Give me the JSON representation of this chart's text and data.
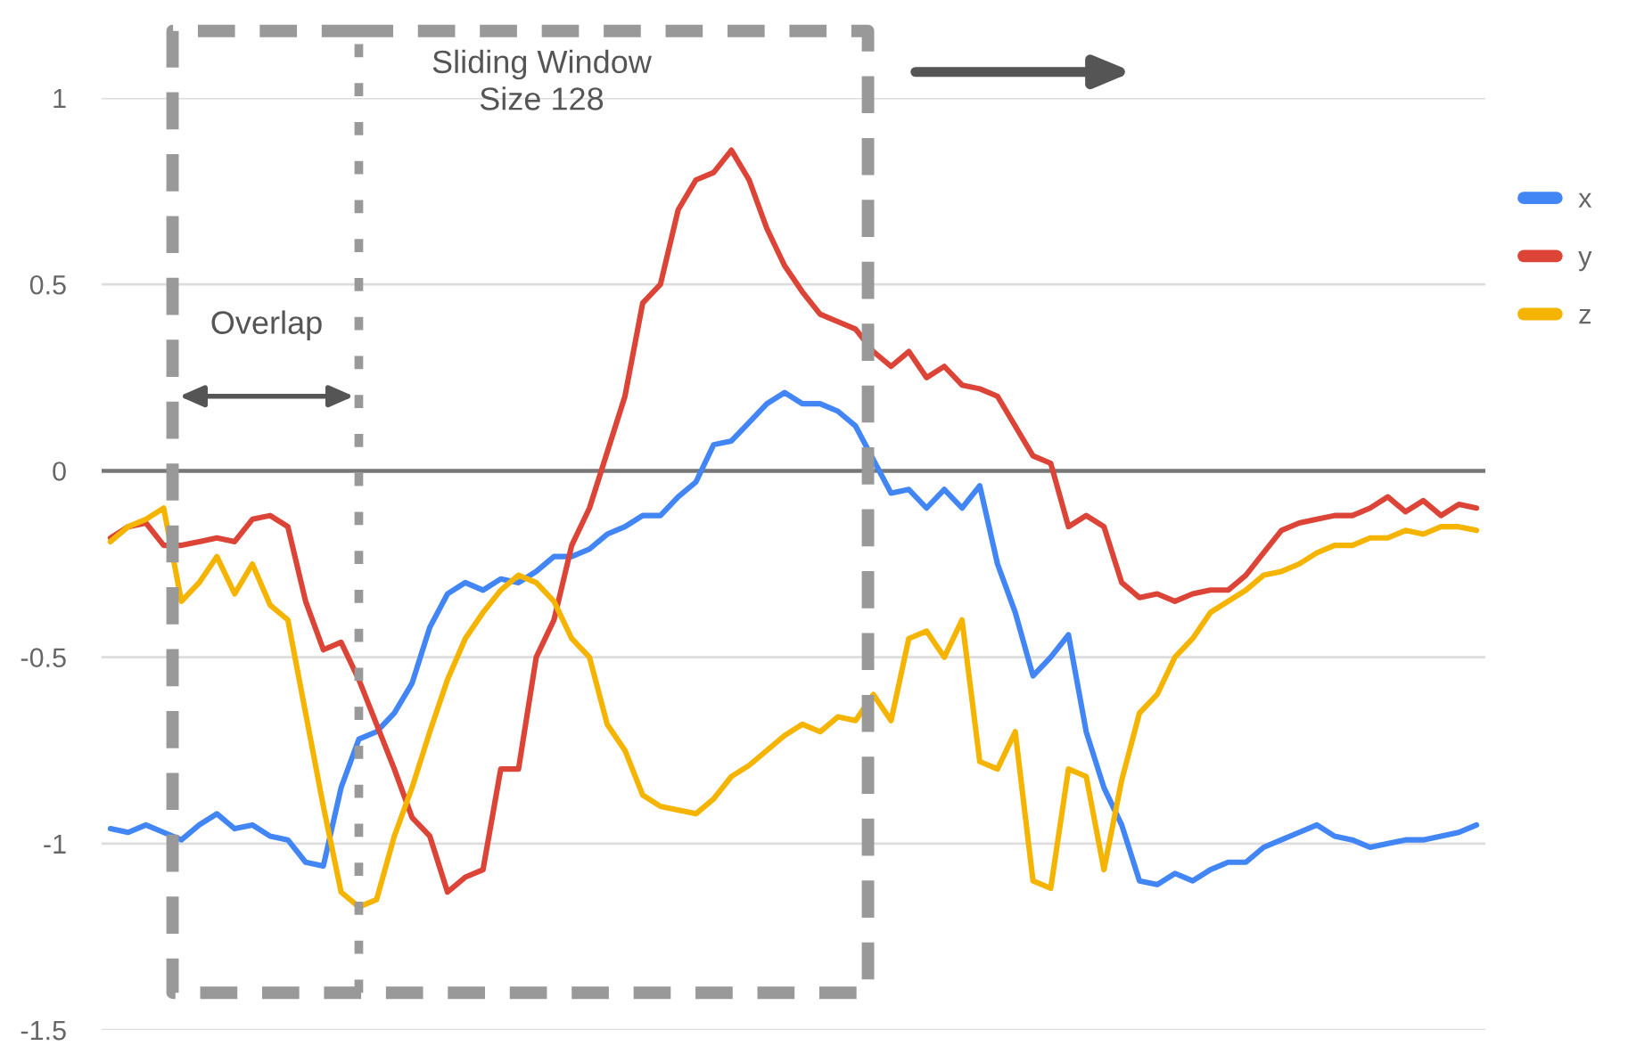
{
  "chart_data": {
    "type": "line",
    "categories": [
      null,
      null,
      null,
      null,
      null,
      null,
      null,
      null,
      null,
      null,
      null,
      null,
      null,
      null,
      null,
      null,
      null,
      null,
      null,
      null,
      null,
      null,
      null,
      null,
      null,
      null,
      null,
      null,
      null,
      null,
      null,
      null,
      null,
      null,
      null,
      null,
      null,
      null,
      null,
      null,
      null,
      null,
      null,
      null,
      null,
      null,
      null,
      null,
      null,
      null,
      null,
      null,
      null,
      null,
      null,
      null,
      null,
      null,
      null,
      null,
      null,
      null,
      null,
      null,
      null,
      null,
      null,
      null,
      null,
      null,
      null,
      null,
      null,
      null,
      null,
      null,
      null,
      null
    ],
    "series": [
      {
        "name": "x",
        "color": "#4285f4",
        "values": [
          -0.96,
          -0.97,
          -0.95,
          -0.97,
          -0.99,
          -0.95,
          -0.92,
          -0.96,
          -0.95,
          -0.98,
          -0.99,
          -1.05,
          -1.06,
          -0.85,
          -0.72,
          -0.7,
          -0.65,
          -0.57,
          -0.42,
          -0.33,
          -0.3,
          -0.32,
          -0.29,
          -0.3,
          -0.27,
          -0.23,
          -0.23,
          -0.21,
          -0.17,
          -0.15,
          -0.12,
          -0.12,
          -0.07,
          -0.03,
          0.07,
          0.08,
          0.13,
          0.18,
          0.21,
          0.18,
          0.18,
          0.16,
          0.12,
          0.03,
          -0.06,
          -0.05,
          -0.1,
          -0.05,
          -0.1,
          -0.04,
          -0.25,
          -0.38,
          -0.55,
          -0.5,
          -0.44,
          -0.7,
          -0.85,
          -0.95,
          -1.1,
          -1.11,
          -1.08,
          -1.1,
          -1.07,
          -1.05,
          -1.05,
          -1.01,
          -0.99,
          -0.97,
          -0.95,
          -0.98,
          -0.99,
          -1.01,
          -1.0,
          -0.99,
          -0.99,
          -0.98,
          -0.97,
          -0.95
        ]
      },
      {
        "name": "y",
        "color": "#db4437",
        "values": [
          -0.18,
          -0.15,
          -0.14,
          -0.2,
          -0.2,
          -0.19,
          -0.18,
          -0.19,
          -0.13,
          -0.12,
          -0.15,
          -0.35,
          -0.48,
          -0.46,
          -0.56,
          -0.68,
          -0.8,
          -0.93,
          -0.98,
          -1.13,
          -1.09,
          -1.07,
          -0.8,
          -0.8,
          -0.5,
          -0.4,
          -0.2,
          -0.1,
          0.05,
          0.2,
          0.45,
          0.5,
          0.7,
          0.78,
          0.8,
          0.86,
          0.78,
          0.65,
          0.55,
          0.48,
          0.42,
          0.4,
          0.38,
          0.32,
          0.28,
          0.32,
          0.25,
          0.28,
          0.23,
          0.22,
          0.2,
          0.12,
          0.04,
          0.02,
          -0.15,
          -0.12,
          -0.15,
          -0.3,
          -0.34,
          -0.33,
          -0.35,
          -0.33,
          -0.32,
          -0.32,
          -0.28,
          -0.22,
          -0.16,
          -0.14,
          -0.13,
          -0.12,
          -0.12,
          -0.1,
          -0.07,
          -0.11,
          -0.08,
          -0.12,
          -0.09,
          -0.1
        ]
      },
      {
        "name": "z",
        "color": "#f4b400",
        "values": [
          -0.19,
          -0.15,
          -0.13,
          -0.1,
          -0.35,
          -0.3,
          -0.23,
          -0.33,
          -0.25,
          -0.36,
          -0.4,
          -0.65,
          -0.9,
          -1.13,
          -1.17,
          -1.15,
          -0.98,
          -0.85,
          -0.7,
          -0.56,
          -0.45,
          -0.38,
          -0.32,
          -0.28,
          -0.3,
          -0.35,
          -0.45,
          -0.5,
          -0.68,
          -0.75,
          -0.87,
          -0.9,
          -0.91,
          -0.92,
          -0.88,
          -0.82,
          -0.79,
          -0.75,
          -0.71,
          -0.68,
          -0.7,
          -0.66,
          -0.67,
          -0.6,
          -0.67,
          -0.45,
          -0.43,
          -0.5,
          -0.4,
          -0.78,
          -0.8,
          -0.7,
          -1.1,
          -1.12,
          -0.8,
          -0.82,
          -1.07,
          -0.83,
          -0.65,
          -0.6,
          -0.5,
          -0.45,
          -0.38,
          -0.35,
          -0.32,
          -0.28,
          -0.27,
          -0.25,
          -0.22,
          -0.2,
          -0.2,
          -0.18,
          -0.18,
          -0.16,
          -0.17,
          -0.15,
          -0.15,
          -0.16
        ]
      }
    ],
    "ylim": [
      -1.5,
      1
    ],
    "yticks": [
      -1.5,
      -1,
      -0.5,
      0,
      0.5,
      1
    ],
    "grid": "y",
    "legend": "right",
    "ref_lines": [
      {
        "axis": "y",
        "value": 0,
        "color": "#777777"
      }
    ],
    "annotations": [
      "Sliding Window\nSize 128",
      "Overlap"
    ]
  }
}
